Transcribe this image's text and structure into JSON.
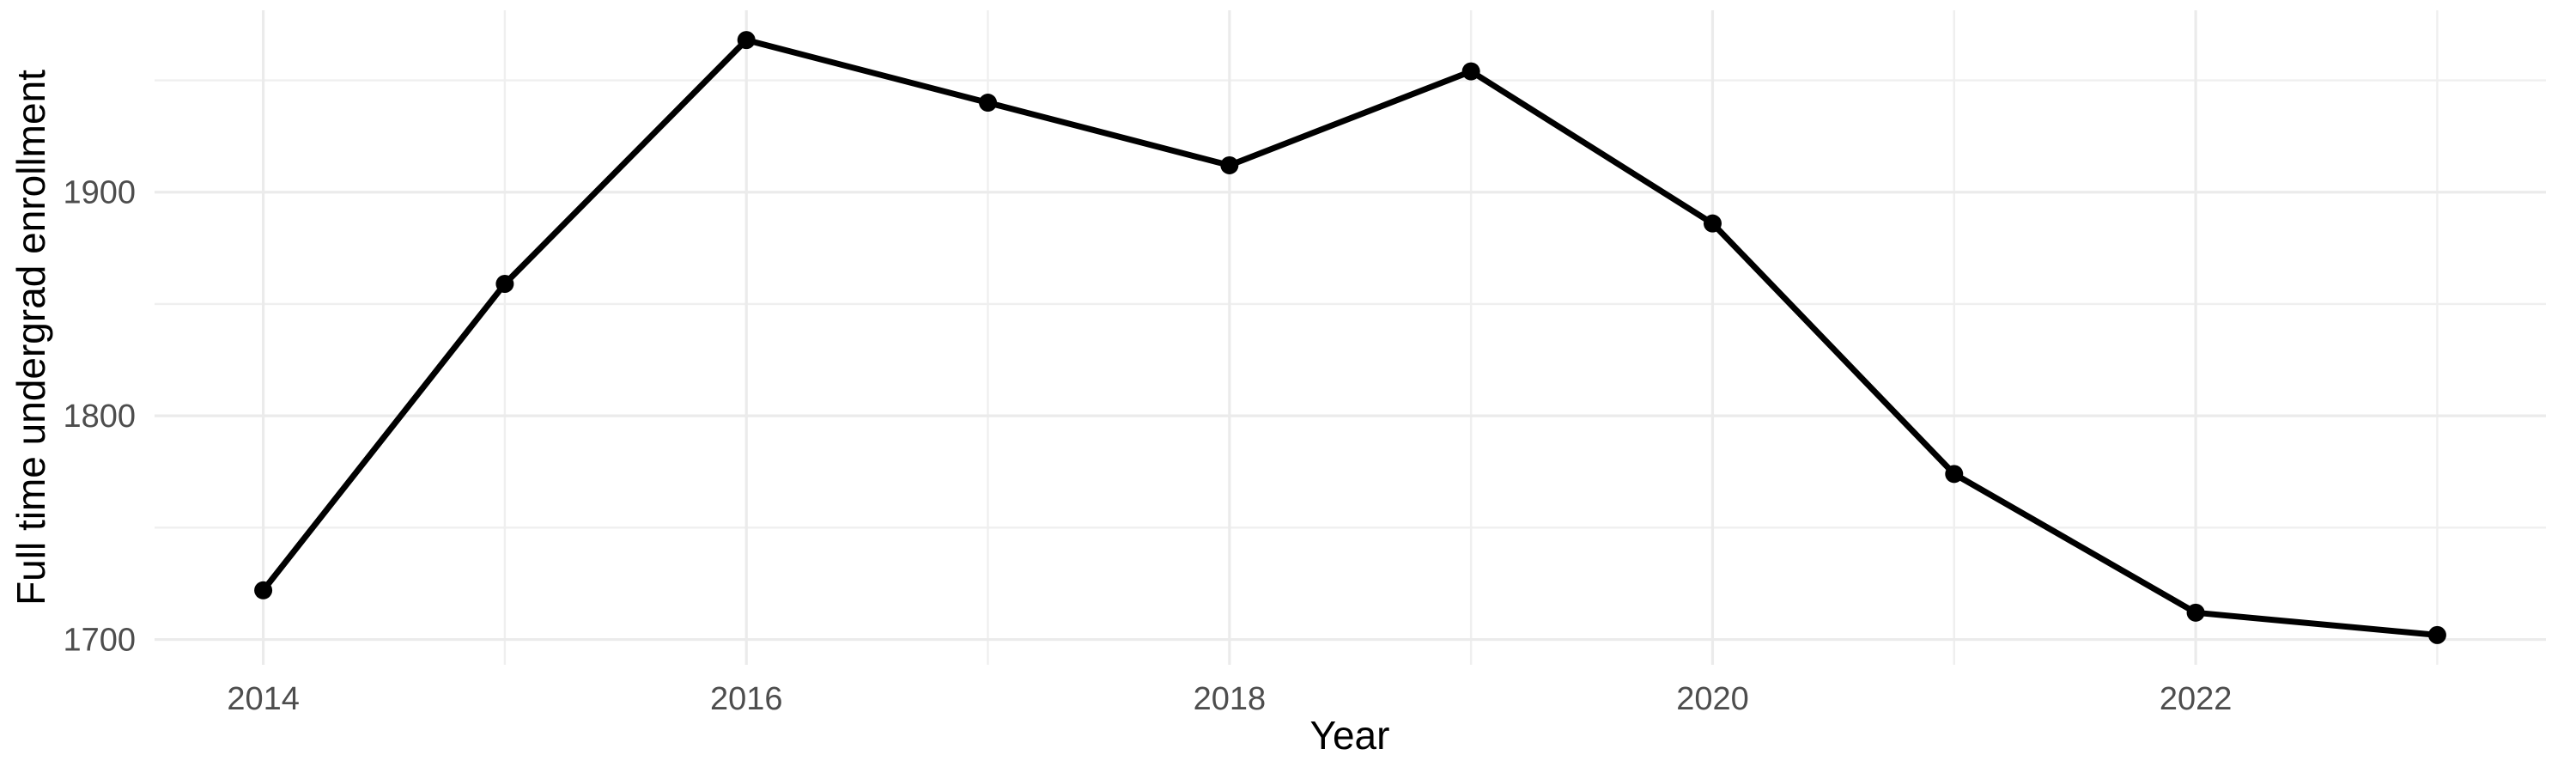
{
  "chart_data": {
    "type": "line",
    "title": "",
    "xlabel": "Year",
    "ylabel": "Full time undergrad enrollment",
    "x": [
      2014,
      2015,
      2016,
      2017,
      2018,
      2019,
      2020,
      2021,
      2022,
      2023
    ],
    "series": [
      {
        "name": "Full time undergrad enrollment",
        "values": [
          1722,
          1859,
          1968,
          1940,
          1912,
          1954,
          1886,
          1774,
          1712,
          1702
        ]
      }
    ],
    "x_major_ticks": [
      2014,
      2016,
      2018,
      2020,
      2022
    ],
    "x_minor_ticks": [
      2015,
      2017,
      2019,
      2021,
      2023
    ],
    "y_major_ticks": [
      1700,
      1800,
      1900
    ],
    "y_minor_ticks": [
      1750,
      1850,
      1950
    ],
    "xlim": [
      2013.55,
      2023.45
    ],
    "ylim": [
      1688.7,
      1981.3
    ],
    "grid": "on",
    "legend": "none",
    "colors": {
      "line": "#000000",
      "point": "#000000",
      "major_grid": "#EBEBEB",
      "minor_grid": "#EFEFEF",
      "tick_label": "#4D4D4D",
      "axis_title": "#000000",
      "background": "#FFFFFF"
    }
  }
}
